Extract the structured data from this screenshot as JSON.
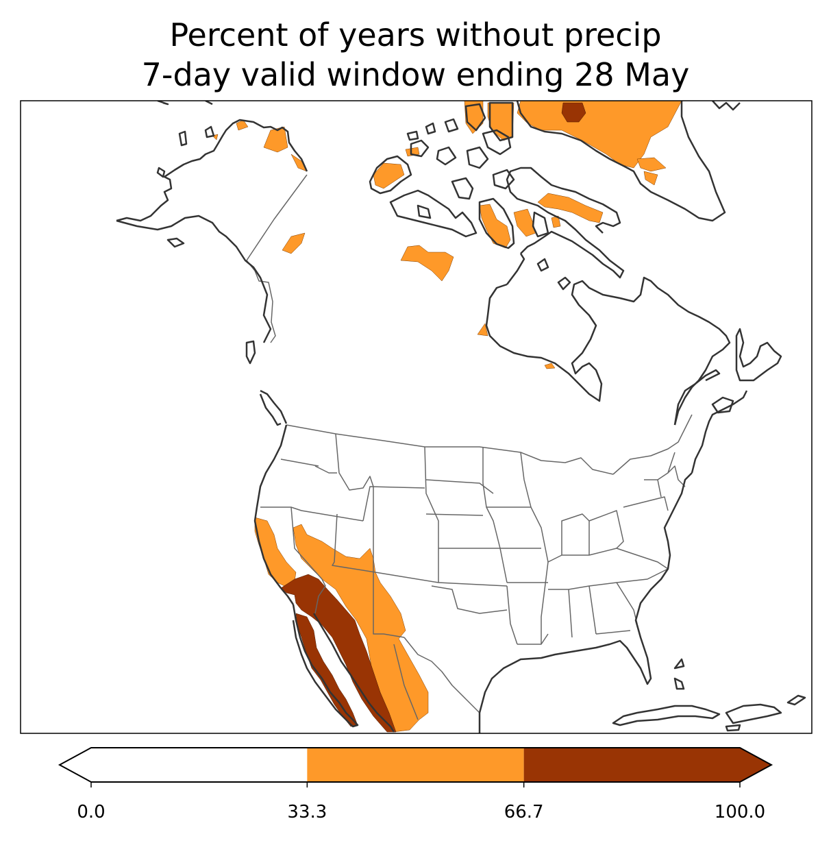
{
  "title": {
    "line1": "Percent of years without precip",
    "line2": "7-day valid window ending 28 May"
  },
  "colorbar": {
    "ticks": [
      "0.0",
      "33.3",
      "66.7",
      "100.0"
    ],
    "bins": [
      {
        "from": 0.0,
        "to": 33.3,
        "color": "#ffffff"
      },
      {
        "from": 33.3,
        "to": 66.7,
        "color": "#fe9929"
      },
      {
        "from": 66.7,
        "to": 100.0,
        "color": "#993404"
      }
    ],
    "extend": "both"
  },
  "colors": {
    "low": "#ffffff",
    "mid": "#fe9929",
    "high": "#993404",
    "coastline": "#333333",
    "borders": "#666666"
  }
}
